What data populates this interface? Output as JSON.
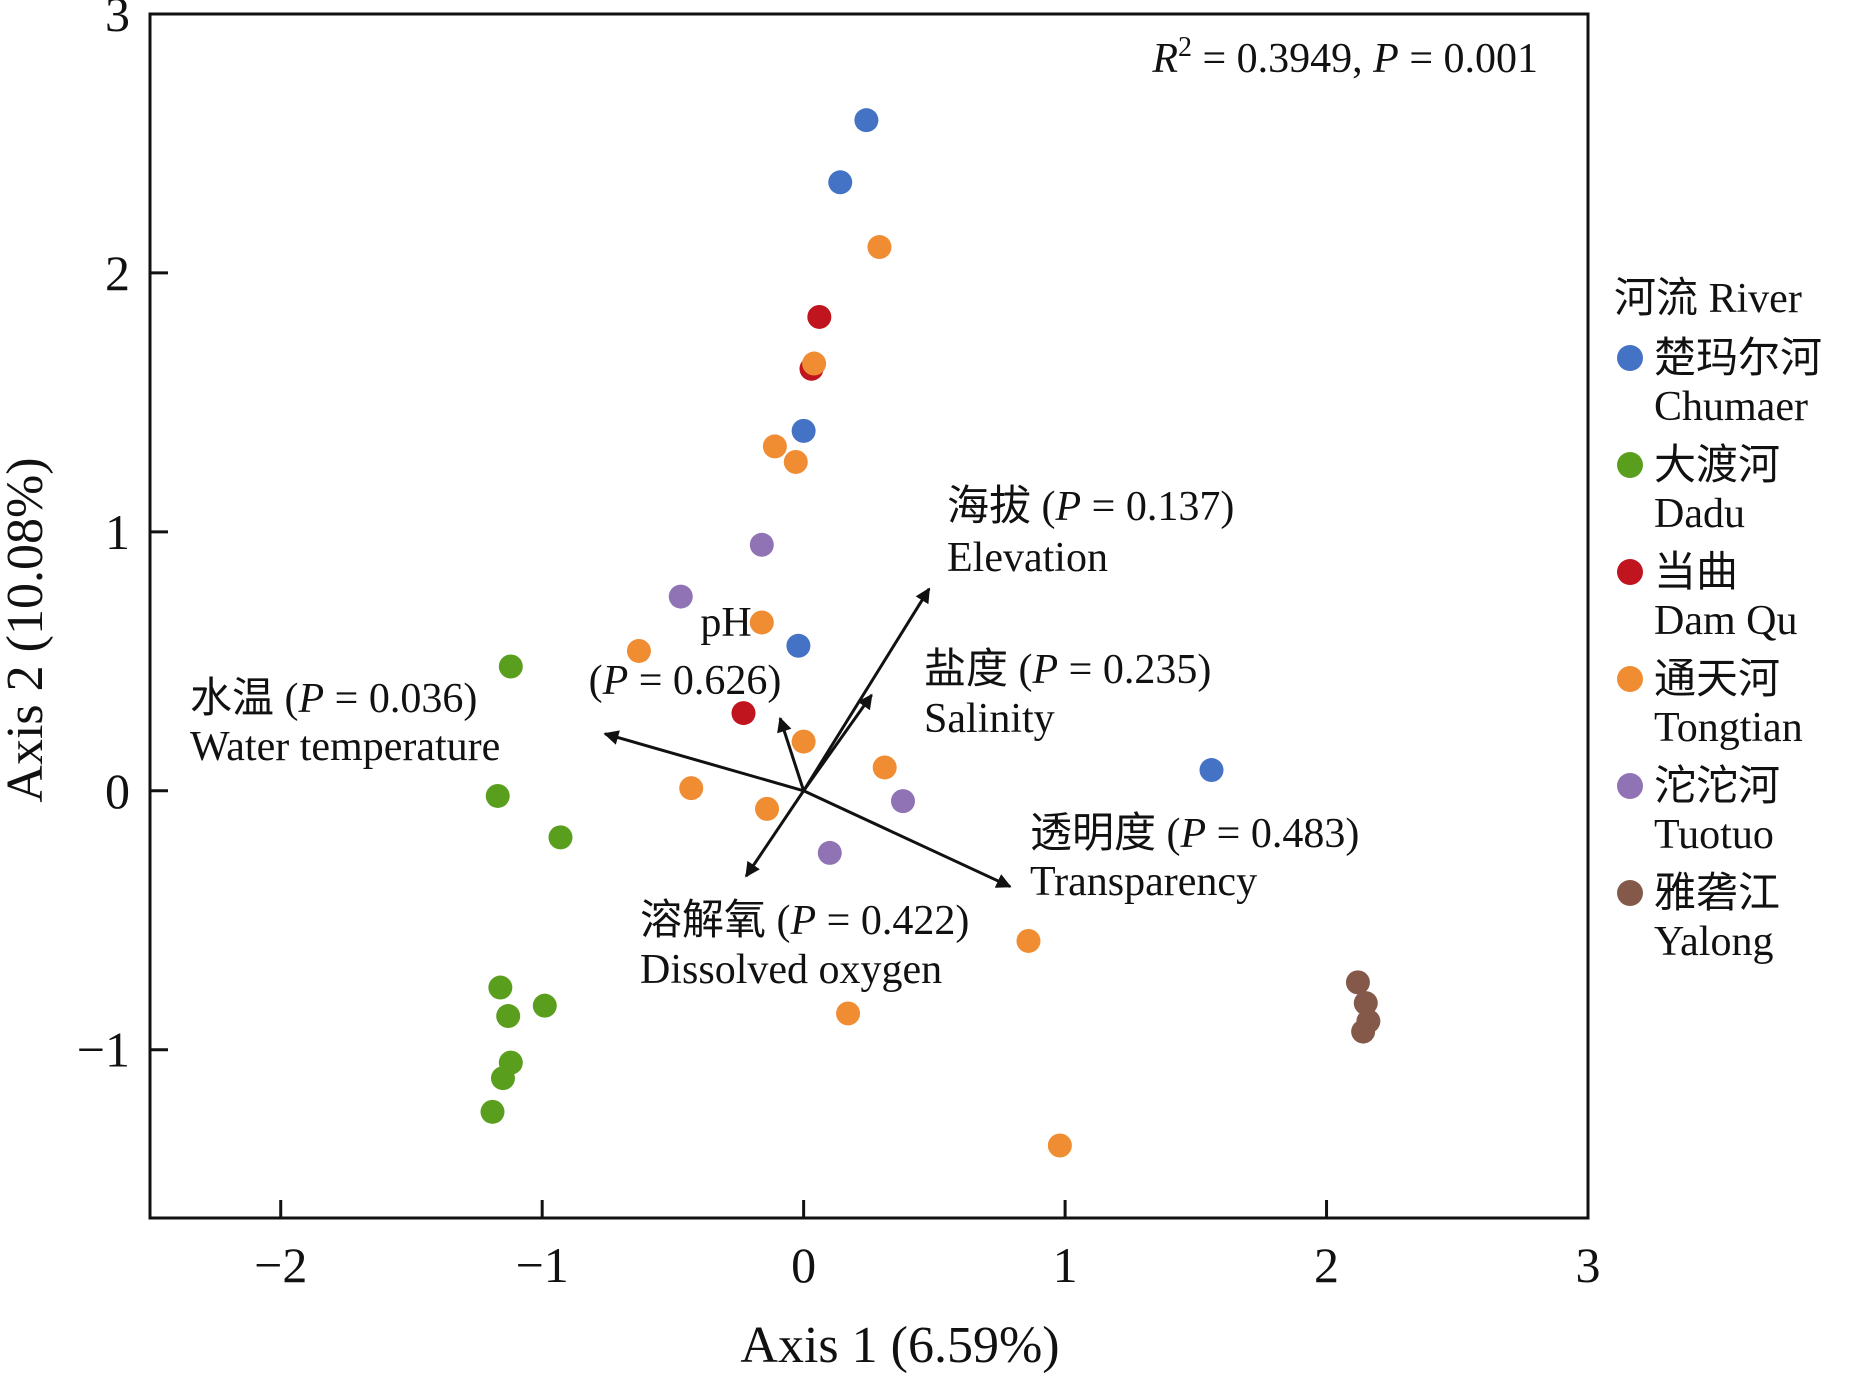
{
  "chart_data": {
    "type": "scatter",
    "title": "",
    "xlabel": "Axis 1 (6.59%)",
    "ylabel": "Axis 2 (10.08%)",
    "xlim": [
      -2.5,
      3.0
    ],
    "ylim": [
      -1.65,
      3.0
    ],
    "x_ticks": [
      -2,
      -1,
      0,
      1,
      2,
      3
    ],
    "x_tick_labels": [
      "−2",
      "−1",
      "0",
      "1",
      "2",
      "3"
    ],
    "y_ticks": [
      -1,
      0,
      1,
      2,
      3
    ],
    "y_tick_labels": [
      "−1",
      "0",
      "1",
      "2",
      "3"
    ],
    "grid": false,
    "stats_annotation": {
      "r2_symbol": "R",
      "r2_sup": "2",
      "r2_value": " = 0.3949, ",
      "p_symbol": "P",
      "p_value": " = 0.001"
    },
    "legend": {
      "position": "right",
      "title": "河流 River"
    },
    "series": [
      {
        "name_cn": "楚玛尔河",
        "name_en": "Chumaer",
        "color": "#4472c4",
        "points": [
          [
            0.24,
            2.59
          ],
          [
            0.14,
            2.35
          ],
          [
            0.0,
            1.39
          ],
          [
            -0.02,
            0.56
          ],
          [
            1.56,
            0.08
          ]
        ]
      },
      {
        "name_cn": "大渡河",
        "name_en": "Dadu",
        "color": "#5a9e1e",
        "points": [
          [
            -1.12,
            0.48
          ],
          [
            -1.17,
            -0.02
          ],
          [
            -0.93,
            -0.18
          ],
          [
            -1.16,
            -0.76
          ],
          [
            -1.13,
            -0.87
          ],
          [
            -0.99,
            -0.83
          ],
          [
            -1.12,
            -1.05
          ],
          [
            -1.15,
            -1.11
          ],
          [
            -1.19,
            -1.24
          ]
        ]
      },
      {
        "name_cn": "当曲",
        "name_en": "Dam Qu",
        "color": "#c0141e",
        "points": [
          [
            0.06,
            1.83
          ],
          [
            0.03,
            1.63
          ],
          [
            -0.23,
            0.3
          ]
        ]
      },
      {
        "name_cn": "通天河",
        "name_en": "Tongtian",
        "color": "#f08c32",
        "points": [
          [
            0.29,
            2.1
          ],
          [
            0.04,
            1.65
          ],
          [
            -0.11,
            1.33
          ],
          [
            -0.03,
            1.27
          ],
          [
            -0.16,
            0.65
          ],
          [
            -0.63,
            0.54
          ],
          [
            0.0,
            0.19
          ],
          [
            0.31,
            0.09
          ],
          [
            -0.43,
            0.01
          ],
          [
            -0.14,
            -0.07
          ],
          [
            0.86,
            -0.58
          ],
          [
            0.17,
            -0.86
          ],
          [
            0.98,
            -1.37
          ]
        ]
      },
      {
        "name_cn": "沱沱河",
        "name_en": "Tuotuo",
        "color": "#8f73b5",
        "points": [
          [
            -0.16,
            0.95
          ],
          [
            -0.47,
            0.75
          ],
          [
            0.38,
            -0.04
          ],
          [
            0.1,
            -0.24
          ]
        ]
      },
      {
        "name_cn": "雅砻江",
        "name_en": "Yalong",
        "color": "#84594a",
        "points": [
          [
            2.12,
            -0.74
          ],
          [
            2.15,
            -0.82
          ],
          [
            2.16,
            -0.89
          ],
          [
            2.14,
            -0.93
          ]
        ]
      }
    ],
    "vectors": [
      {
        "cn": "海拔 ",
        "p_symbol": "P",
        "p_value": " = 0.137)",
        "en": "Elevation",
        "end": [
          0.48,
          0.78
        ]
      },
      {
        "cn": "",
        "p_symbol": "P",
        "p_value": " = 0.626)",
        "en": "pH",
        "end": [
          -0.09,
          0.28
        ]
      },
      {
        "cn": "盐度 ",
        "p_symbol": "P",
        "p_value": " = 0.235)",
        "en": "Salinity",
        "end": [
          0.26,
          0.37
        ]
      },
      {
        "cn": "水温 ",
        "p_symbol": "P",
        "p_value": " = 0.036)",
        "en": "Water temperature",
        "end": [
          -0.76,
          0.22
        ]
      },
      {
        "cn": "透明度 ",
        "p_symbol": "P",
        "p_value": " = 0.483)",
        "en": "Transparency",
        "end": [
          0.79,
          -0.37
        ]
      },
      {
        "cn": "溶解氧 ",
        "p_symbol": "P",
        "p_value": " = 0.422)",
        "en": "Dissolved oxygen",
        "end": [
          -0.22,
          -0.33
        ]
      }
    ]
  }
}
